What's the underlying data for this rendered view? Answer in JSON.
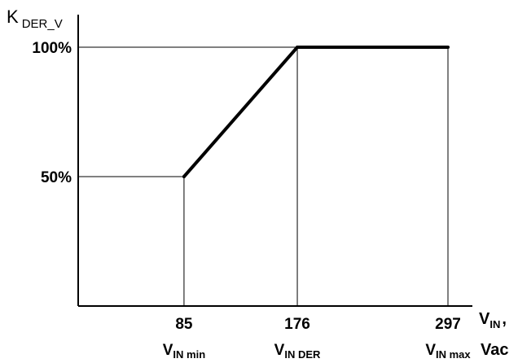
{
  "chart_data": {
    "type": "line",
    "title": "",
    "ylabel": {
      "main": "K",
      "sub": "DER_V"
    },
    "xlabel": {
      "main": "V",
      "sub": "IN",
      "suffix": ",",
      "unit": "Vac"
    },
    "xlim": [
      0,
      297
    ],
    "ylim": [
      0,
      100
    ],
    "x_ticks": [
      {
        "value": 85,
        "label": "85",
        "name_main": "V",
        "name_sub": "IN min"
      },
      {
        "value": 176,
        "label": "176",
        "name_main": "V",
        "name_sub": "IN DER"
      },
      {
        "value": 297,
        "label": "297",
        "name_main": "V",
        "name_sub": "IN max"
      }
    ],
    "y_ticks": [
      {
        "value": 50,
        "label": "50%"
      },
      {
        "value": 100,
        "label": "100%"
      }
    ],
    "series": [
      {
        "x": [
          85,
          176,
          297
        ],
        "y": [
          50,
          100,
          100
        ]
      }
    ],
    "grid": "guides to breakpoints",
    "legend": "none",
    "line_color": "#000000"
  }
}
